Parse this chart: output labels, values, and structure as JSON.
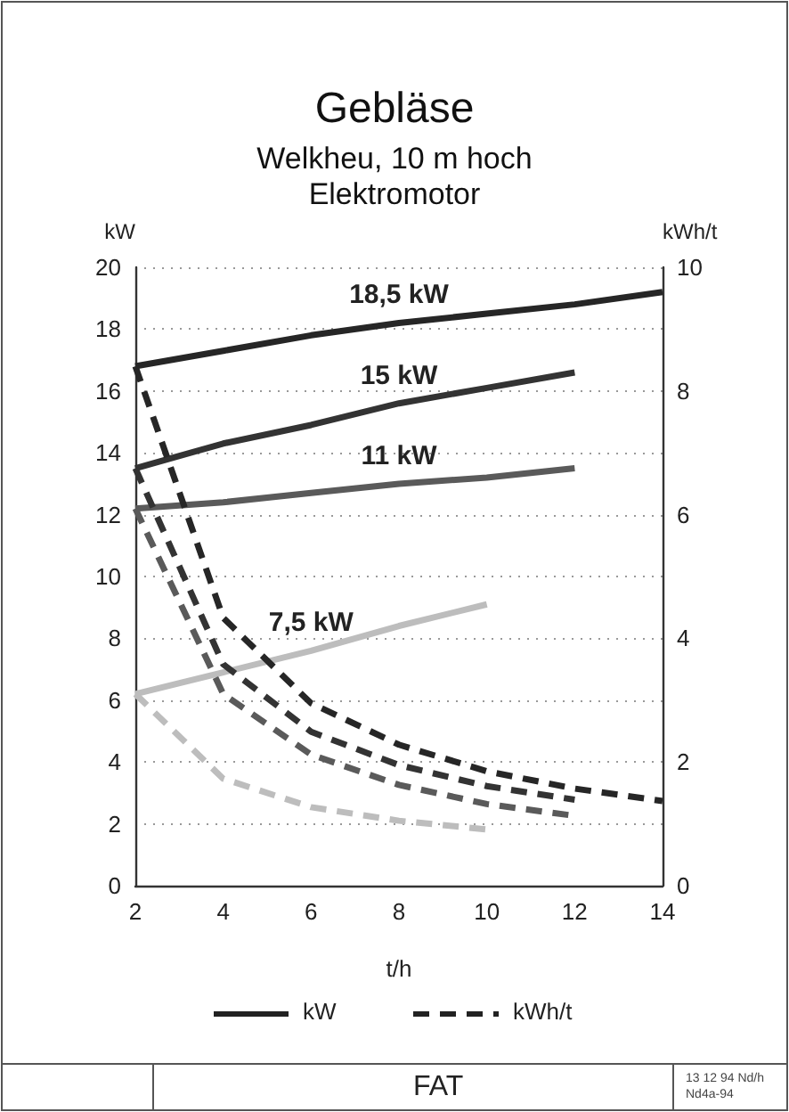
{
  "chart_data": {
    "type": "line",
    "title": "Gebläse",
    "subtitle": "Welkheu, 10 m hoch\nElektromotor",
    "xlabel": "t/h",
    "ylabel": "kW",
    "y2label": "kWh/t",
    "series": [
      {
        "name": "18,5 kW",
        "color": "#262626",
        "line_style": "solid",
        "x": [
          2,
          4,
          6,
          8,
          10,
          12,
          14
        ],
        "values": [
          16.8,
          17.3,
          17.8,
          18.2,
          18.5,
          18.8,
          19.2
        ]
      },
      {
        "name": "15 kW",
        "color": "#333333",
        "line_style": "solid",
        "x": [
          2,
          4,
          6,
          8,
          10,
          12
        ],
        "values": [
          13.5,
          14.3,
          14.9,
          15.6,
          16.1,
          16.6
        ]
      },
      {
        "name": "11 kW",
        "color": "#5a5a5a",
        "line_style": "solid",
        "x": [
          2,
          4,
          6,
          8,
          10,
          12
        ],
        "values": [
          12.2,
          12.4,
          12.7,
          13.0,
          13.2,
          13.5
        ]
      },
      {
        "name": "7,5 kW",
        "color": "#bdbdbd",
        "line_style": "solid",
        "x": [
          2,
          4,
          6,
          8,
          10
        ],
        "values": [
          6.2,
          6.9,
          7.6,
          8.4,
          9.1
        ]
      },
      {
        "color": "#262626",
        "line_style": "dashed",
        "axis": "y2",
        "x": [
          2,
          4,
          6,
          8,
          10,
          12,
          14
        ],
        "values": [
          8.4,
          4.33,
          2.95,
          2.28,
          1.85,
          1.57,
          1.37
        ]
      },
      {
        "color": "#333333",
        "line_style": "dashed",
        "axis": "y2",
        "x": [
          2,
          4,
          6,
          8,
          10,
          12
        ],
        "values": [
          6.75,
          3.58,
          2.49,
          1.95,
          1.61,
          1.39
        ]
      },
      {
        "color": "#5a5a5a",
        "line_style": "dashed",
        "axis": "y2",
        "x": [
          2,
          4,
          6,
          8,
          10,
          12
        ],
        "values": [
          6.1,
          3.1,
          2.12,
          1.63,
          1.32,
          1.13
        ]
      },
      {
        "color": "#bdbdbd",
        "line_style": "dashed",
        "axis": "y2",
        "x": [
          2,
          4,
          6,
          8,
          10
        ],
        "values": [
          3.1,
          1.73,
          1.27,
          1.05,
          0.91
        ]
      }
    ],
    "xlim": [
      2,
      14
    ],
    "xticks": [
      2,
      4,
      6,
      8,
      10,
      12,
      14
    ],
    "ylim": [
      0,
      20
    ],
    "yticks": [
      0,
      2,
      4,
      6,
      8,
      10,
      12,
      14,
      16,
      18,
      20
    ],
    "y2lim": [
      0,
      10
    ],
    "y2ticks": [
      0,
      2,
      4,
      6,
      8,
      10
    ],
    "grid": "y",
    "marker": "none",
    "annotations": [
      "kW",
      "kWh/t",
      "FAT",
      "13 12 94 Nd/h",
      "Nd4a-94"
    ]
  }
}
